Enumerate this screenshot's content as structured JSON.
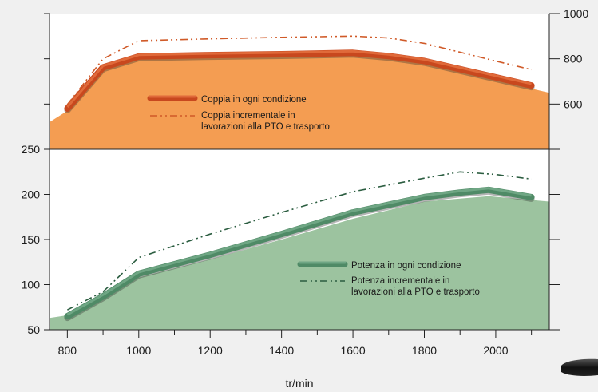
{
  "chart_data": [
    {
      "id": "torque",
      "type": "line",
      "x_unit": "tr/min",
      "y_right_ticks": [
        600,
        800,
        1000
      ],
      "ylim": [
        400,
        1000
      ],
      "series": [
        {
          "name": "Coppia in ogni condizione",
          "style": "band",
          "color": "#c8481e",
          "x": [
            800,
            900,
            1000,
            1200,
            1400,
            1600,
            1700,
            1800,
            2000,
            2100
          ],
          "y": [
            580,
            762,
            810,
            816,
            820,
            826,
            812,
            790,
            718,
            682
          ]
        },
        {
          "name": "Coppia incrementale in lavorazioni alla PTO e trasporto",
          "style": "dash-dot",
          "color": "#d05a28",
          "x": [
            800,
            900,
            1000,
            1200,
            1400,
            1600,
            1700,
            1800,
            2000,
            2100
          ],
          "y": [
            598,
            800,
            880,
            888,
            895,
            900,
            892,
            868,
            790,
            752
          ]
        }
      ],
      "area": {
        "color": "#f49d52",
        "x": [
          750,
          800,
          900,
          1000,
          1200,
          1400,
          1600,
          1700,
          1800,
          2000,
          2150
        ],
        "y": [
          520,
          570,
          750,
          800,
          806,
          810,
          815,
          800,
          778,
          705,
          650
        ]
      }
    },
    {
      "id": "power",
      "type": "line",
      "x_unit": "tr/min",
      "xlabel": "tr/min",
      "x_ticks": [
        800,
        1000,
        1200,
        1400,
        1600,
        1800,
        2000
      ],
      "y_left_ticks": [
        50,
        100,
        150,
        200,
        250
      ],
      "ylim": [
        50,
        250
      ],
      "xlim": [
        750,
        2150
      ],
      "series": [
        {
          "name": "Potenza in ogni condizione",
          "style": "band",
          "color": "#4f8a66",
          "x": [
            800,
            900,
            1000,
            1200,
            1400,
            1600,
            1800,
            1900,
            1980,
            2100
          ],
          "y": [
            65,
            87,
            112,
            133,
            156,
            180,
            197,
            202,
            205,
            197
          ]
        },
        {
          "name": "Potenza incrementale in lavorazioni alla PTO e trasporto",
          "style": "dash-dot",
          "color": "#2b5d40",
          "x": [
            800,
            900,
            1000,
            1200,
            1400,
            1600,
            1800,
            1900,
            2000,
            2100
          ],
          "y": [
            72,
            92,
            130,
            156,
            180,
            203,
            218,
            225,
            222,
            217
          ]
        }
      ],
      "area": {
        "color": "#9cc39f",
        "x": [
          750,
          800,
          900,
          1000,
          1200,
          1400,
          1600,
          1800,
          1980,
          2150
        ],
        "y": [
          63,
          66,
          85,
          108,
          128,
          150,
          173,
          192,
          198,
          192
        ]
      }
    }
  ],
  "colors": {
    "background": "#f0f0f0",
    "torque_area": "#f49d52",
    "power_area": "#9cc39f",
    "plot_bg": "#ffffff"
  }
}
